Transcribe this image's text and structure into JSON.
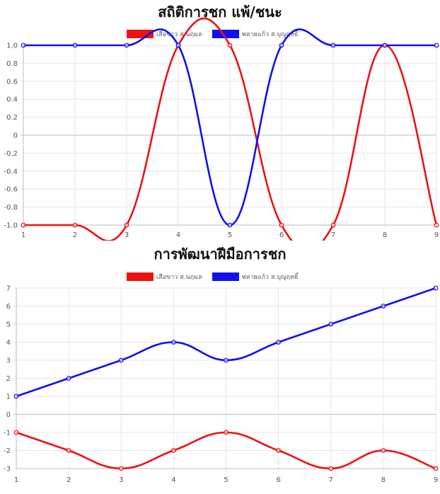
{
  "colors": {
    "red": "#ee1111",
    "blue": "#1111ee"
  },
  "chart_data": [
    {
      "type": "line",
      "title": "สถิติการชก แพ้/ชนะ",
      "x": [
        1,
        2,
        3,
        4,
        5,
        6,
        7,
        8,
        9
      ],
      "ylim": [
        -1,
        1
      ],
      "yticks": [
        "1.0",
        "0.8",
        "0.6",
        "0.4",
        "0.2",
        "0",
        "-0.2",
        "-0.4",
        "-0.6",
        "-0.8",
        "-1.0"
      ],
      "ytick_values": [
        1,
        0.8,
        0.6,
        0.4,
        0.2,
        0,
        -0.2,
        -0.4,
        -0.6,
        -0.8,
        -1
      ],
      "legend_position": "top-center",
      "grid": true,
      "series": [
        {
          "name": "เสือขาว ส.นฤมล",
          "color": "#ee1111",
          "values": [
            -1,
            -1,
            -1,
            1,
            1,
            -1,
            -1,
            1,
            -1
          ]
        },
        {
          "name": "พลายแก้ว ส.บุญฤทธิ์",
          "color": "#1111ee",
          "values": [
            1,
            1,
            1,
            1,
            -1,
            1,
            1,
            1,
            1
          ]
        }
      ]
    },
    {
      "type": "line",
      "title": "การพัฒนาฝีมือการชก",
      "x": [
        1,
        2,
        3,
        4,
        5,
        6,
        7,
        8,
        9
      ],
      "ylim": [
        -3,
        7
      ],
      "yticks": [
        "7",
        "6",
        "5",
        "4",
        "3",
        "2",
        "1",
        "0",
        "-1",
        "-2",
        "-3"
      ],
      "ytick_values": [
        7,
        6,
        5,
        4,
        3,
        2,
        1,
        0,
        -1,
        -2,
        -3
      ],
      "legend_position": "top-center",
      "grid": true,
      "series": [
        {
          "name": "เสือขาว ส.นฤมล",
          "color": "#ee1111",
          "values": [
            -1,
            -2,
            -3,
            -2,
            -1,
            -2,
            -3,
            -2,
            -3
          ]
        },
        {
          "name": "พลายแก้ว ส.บุญฤทธิ์",
          "color": "#1111ee",
          "values": [
            1,
            2,
            3,
            4,
            3,
            4,
            5,
            6,
            7
          ]
        }
      ]
    }
  ]
}
